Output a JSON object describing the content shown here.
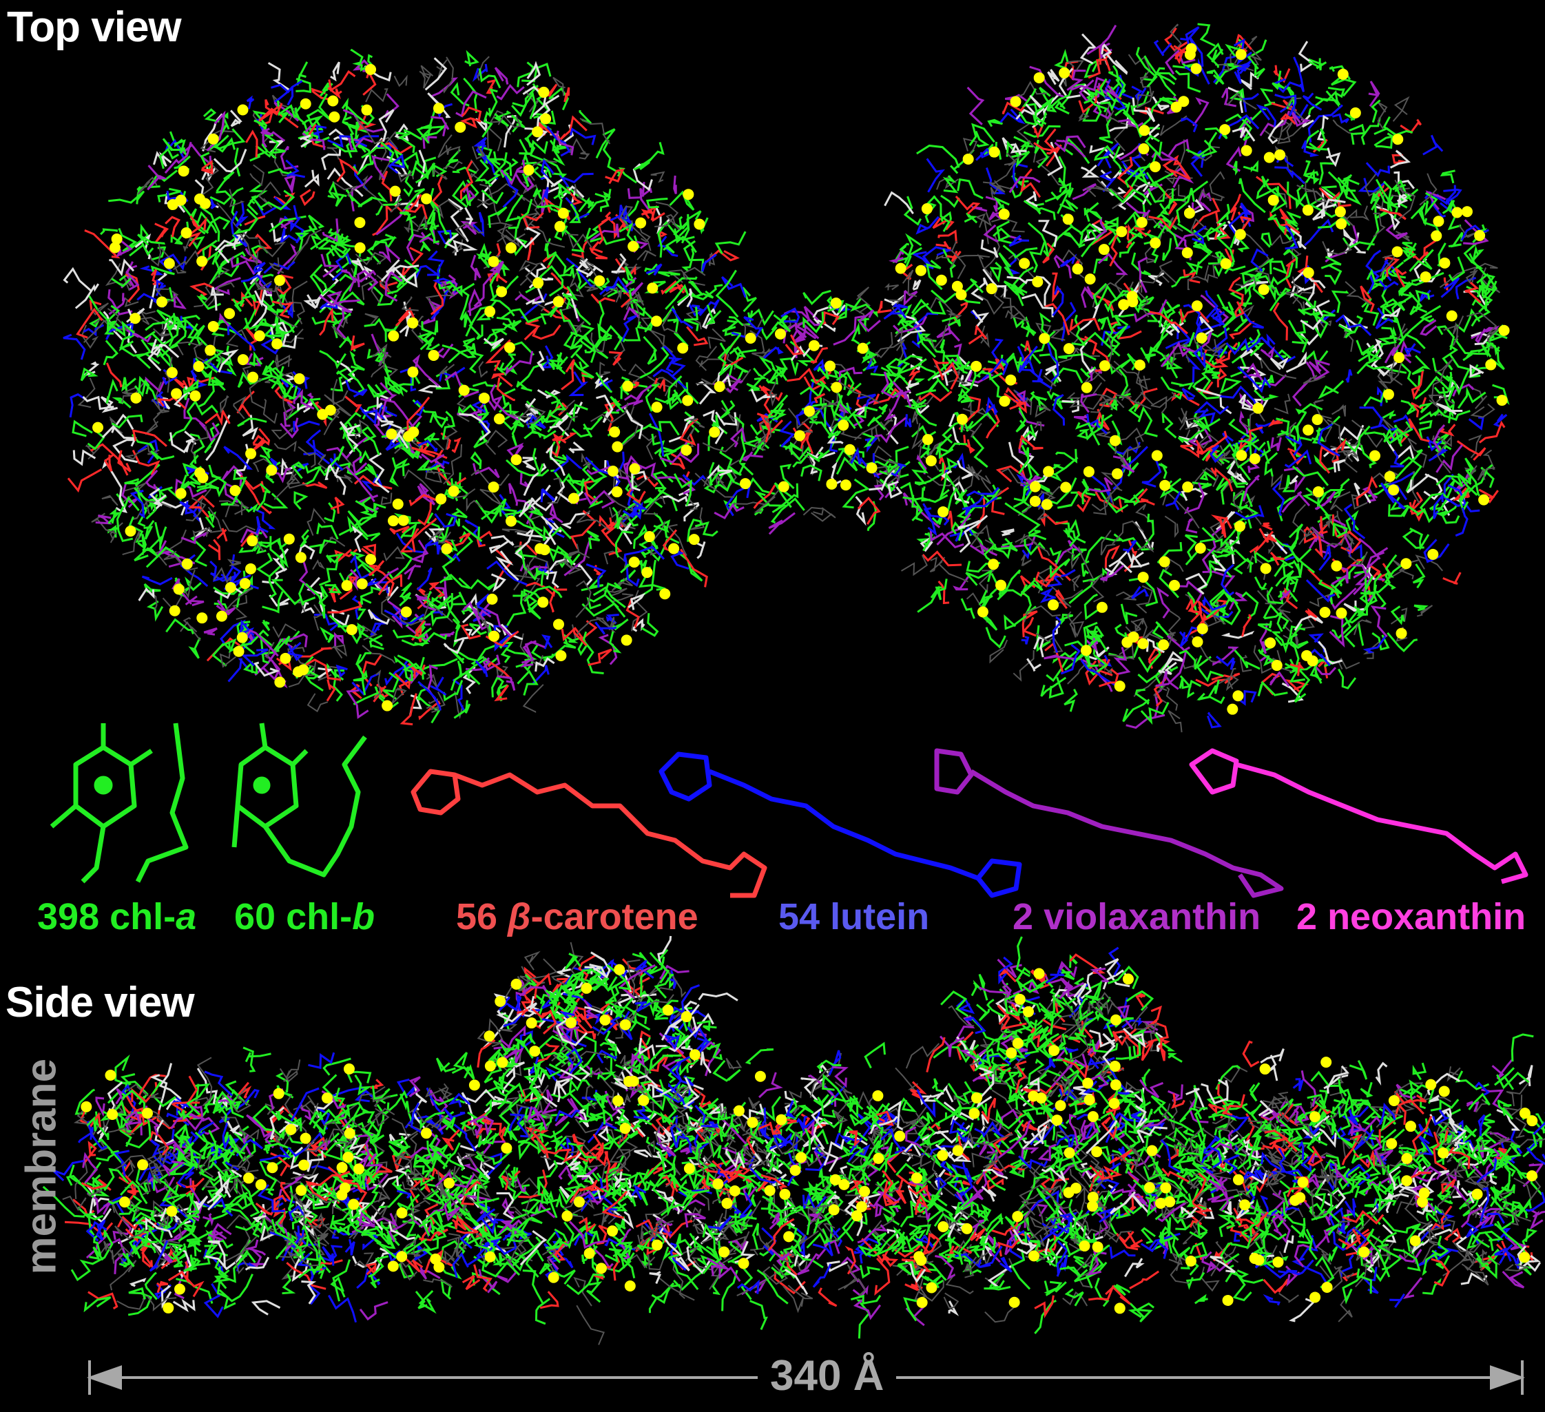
{
  "top_view": {
    "title": "Top view"
  },
  "side_view": {
    "title": "Side view",
    "axis_label": "membrane"
  },
  "legend": [
    {
      "count": "398",
      "name": "chl-",
      "suffix": "a",
      "color": "#22ee22"
    },
    {
      "count": "60",
      "name": "chl-",
      "suffix": "b",
      "color": "#22ee22"
    },
    {
      "count": "56",
      "name": "-carotene",
      "prefix": "β",
      "color": "#f05050"
    },
    {
      "count": "54",
      "name": "lutein",
      "color": "#5a5af0"
    },
    {
      "count": "2",
      "name": "violaxanthin",
      "color": "#b030c8"
    },
    {
      "count": "2",
      "name": "neoxanthin",
      "color": "#ff40e0"
    }
  ],
  "scale_bar": {
    "label": "340 Å"
  },
  "colors": {
    "chlorophyll": "#22ee22",
    "mg_atom": "#ffff00",
    "beta_carotene": "#ff2a2a",
    "lutein": "#1010ff",
    "violaxanthin": "#a020c0",
    "neoxanthin": "#ff30e0",
    "lipid": "#e0e0e0",
    "protein_outline": "#555555",
    "scale": "#a8a8a8"
  }
}
